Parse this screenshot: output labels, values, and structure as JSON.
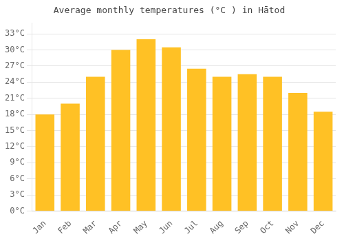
{
  "chart_data": {
    "type": "bar",
    "title": "Average monthly temperatures (°C ) in Hātod",
    "categories": [
      "Jan",
      "Feb",
      "Mar",
      "Apr",
      "May",
      "Jun",
      "Jul",
      "Aug",
      "Sep",
      "Oct",
      "Nov",
      "Dec"
    ],
    "values": [
      18.0,
      20.0,
      25.0,
      30.0,
      32.0,
      30.5,
      26.5,
      25.0,
      25.5,
      25.0,
      22.0,
      18.5
    ],
    "color": "#FFC125",
    "ylim": [
      0,
      35
    ],
    "yticks": [
      {
        "value": 0,
        "label": "0°C"
      },
      {
        "value": 3,
        "label": "3°C"
      },
      {
        "value": 6,
        "label": "6°C"
      },
      {
        "value": 9,
        "label": "9°C"
      },
      {
        "value": 12,
        "label": "12°C"
      },
      {
        "value": 15,
        "label": "15°C"
      },
      {
        "value": 18,
        "label": "18°C"
      },
      {
        "value": 21,
        "label": "21°C"
      },
      {
        "value": 24,
        "label": "24°C"
      },
      {
        "value": 27,
        "label": "27°C"
      },
      {
        "value": 30,
        "label": "30°C"
      },
      {
        "value": 33,
        "label": "33°C"
      }
    ],
    "grid": true
  }
}
